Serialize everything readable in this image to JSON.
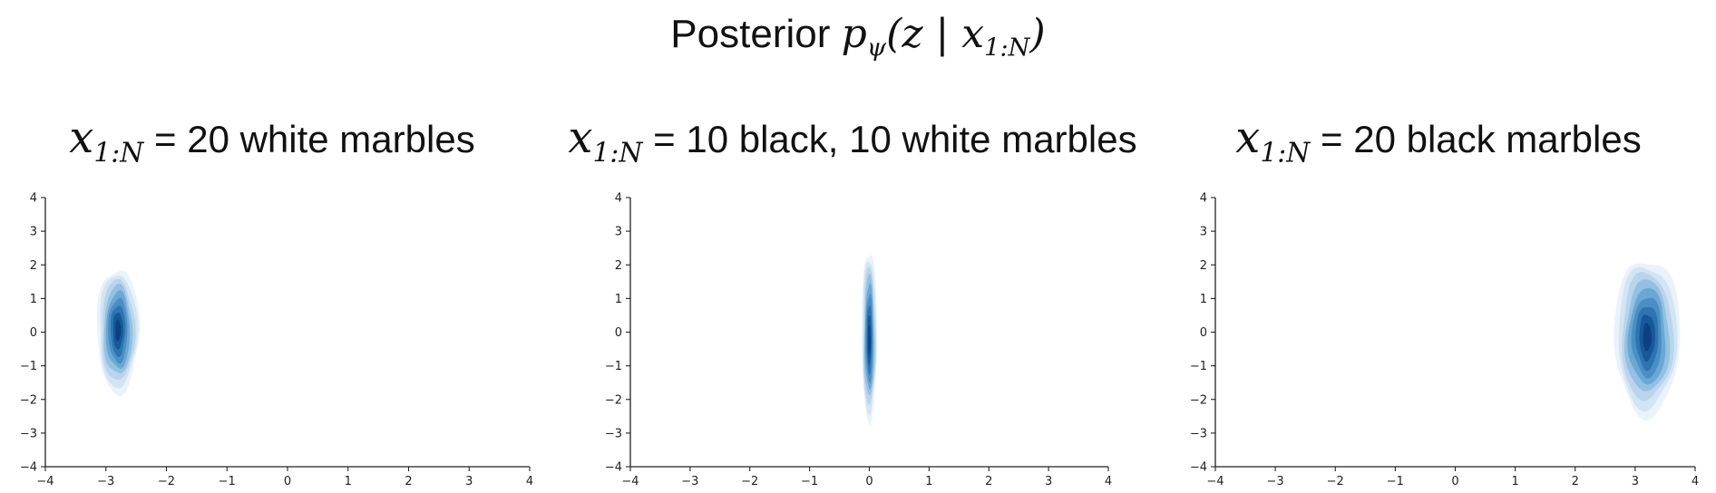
{
  "figure": {
    "title_text": "Posterior ",
    "title_math": {
      "p": "p",
      "psi": "ψ",
      "open": "(",
      "z": "z",
      "bar": " | ",
      "x": "x",
      "sub": "1:N",
      "close": ")"
    }
  },
  "chart_data": [
    {
      "type": "kde_contour",
      "title_math_x": "x",
      "title_math_sub": "1:N",
      "title_text": " = 20 white marbles",
      "xlim": [
        -4,
        4
      ],
      "ylim": [
        -4,
        4
      ],
      "x_ticks": [
        -4,
        -3,
        -2,
        -1,
        0,
        1,
        2,
        3,
        4
      ],
      "y_ticks": [
        -4,
        -3,
        -2,
        -1,
        0,
        1,
        2,
        3,
        4
      ],
      "x_tick_labels": [
        "−4",
        "−3",
        "−2",
        "−1",
        "0",
        "1",
        "2",
        "3",
        "4"
      ],
      "y_tick_labels": [
        "−4",
        "−3",
        "−2",
        "−1",
        "0",
        "1",
        "2",
        "3",
        "4"
      ],
      "density": {
        "center": [
          -2.8,
          0.05
        ],
        "sd": [
          0.14,
          0.55
        ],
        "extent_x": [
          -3.15,
          -2.45
        ],
        "extent_y": [
          -1.8,
          1.9
        ]
      },
      "levels": 8,
      "colormap": [
        "#eaf2fa",
        "#d3e4f3",
        "#b9d5ec",
        "#94c1e0",
        "#6aa8d4",
        "#4a8fc4",
        "#2f74b2",
        "#17589a",
        "#0b4182"
      ]
    },
    {
      "type": "kde_contour",
      "title_math_x": "x",
      "title_math_sub": "1:N",
      "title_text": " = 10 black, 10 white marbles",
      "xlim": [
        -4,
        4
      ],
      "ylim": [
        -4,
        4
      ],
      "x_ticks": [
        -4,
        -3,
        -2,
        -1,
        0,
        1,
        2,
        3,
        4
      ],
      "y_ticks": [
        -4,
        -3,
        -2,
        -1,
        0,
        1,
        2,
        3,
        4
      ],
      "x_tick_labels": [
        "−4",
        "−3",
        "−2",
        "−1",
        "0",
        "1",
        "2",
        "3",
        "4"
      ],
      "y_tick_labels": [
        "−4",
        "−3",
        "−2",
        "−1",
        "0",
        "1",
        "2",
        "3",
        "4"
      ],
      "density": {
        "center": [
          0.0,
          -0.25
        ],
        "sd": [
          0.055,
          0.75
        ],
        "extent_x": [
          -0.13,
          0.13
        ],
        "extent_y": [
          -2.6,
          2.45
        ]
      },
      "levels": 8,
      "colormap": [
        "#eaf2fa",
        "#d3e4f3",
        "#b9d5ec",
        "#94c1e0",
        "#6aa8d4",
        "#4a8fc4",
        "#2f74b2",
        "#17589a",
        "#0b4182"
      ]
    },
    {
      "type": "kde_contour",
      "title_math_x": "x",
      "title_math_sub": "1:N",
      "title_text": " = 20 black marbles",
      "xlim": [
        -4,
        4
      ],
      "ylim": [
        -4,
        4
      ],
      "x_ticks": [
        -4,
        -3,
        -2,
        -1,
        0,
        1,
        2,
        3,
        4
      ],
      "y_ticks": [
        -4,
        -3,
        -2,
        -1,
        0,
        1,
        2,
        3,
        4
      ],
      "x_tick_labels": [
        "−4",
        "−3",
        "−2",
        "−1",
        "0",
        "1",
        "2",
        "3",
        "4"
      ],
      "y_tick_labels": [
        "−4",
        "−3",
        "−2",
        "−1",
        "0",
        "1",
        "2",
        "3",
        "4"
      ],
      "density": {
        "center": [
          3.2,
          -0.15
        ],
        "sd": [
          0.18,
          0.62
        ],
        "extent_x": [
          2.7,
          3.8
        ],
        "extent_y": [
          -2.45,
          2.2
        ]
      },
      "levels": 8,
      "colormap": [
        "#eaf2fa",
        "#d3e4f3",
        "#b9d5ec",
        "#94c1e0",
        "#6aa8d4",
        "#4a8fc4",
        "#2f74b2",
        "#17589a",
        "#0b4182"
      ]
    }
  ]
}
